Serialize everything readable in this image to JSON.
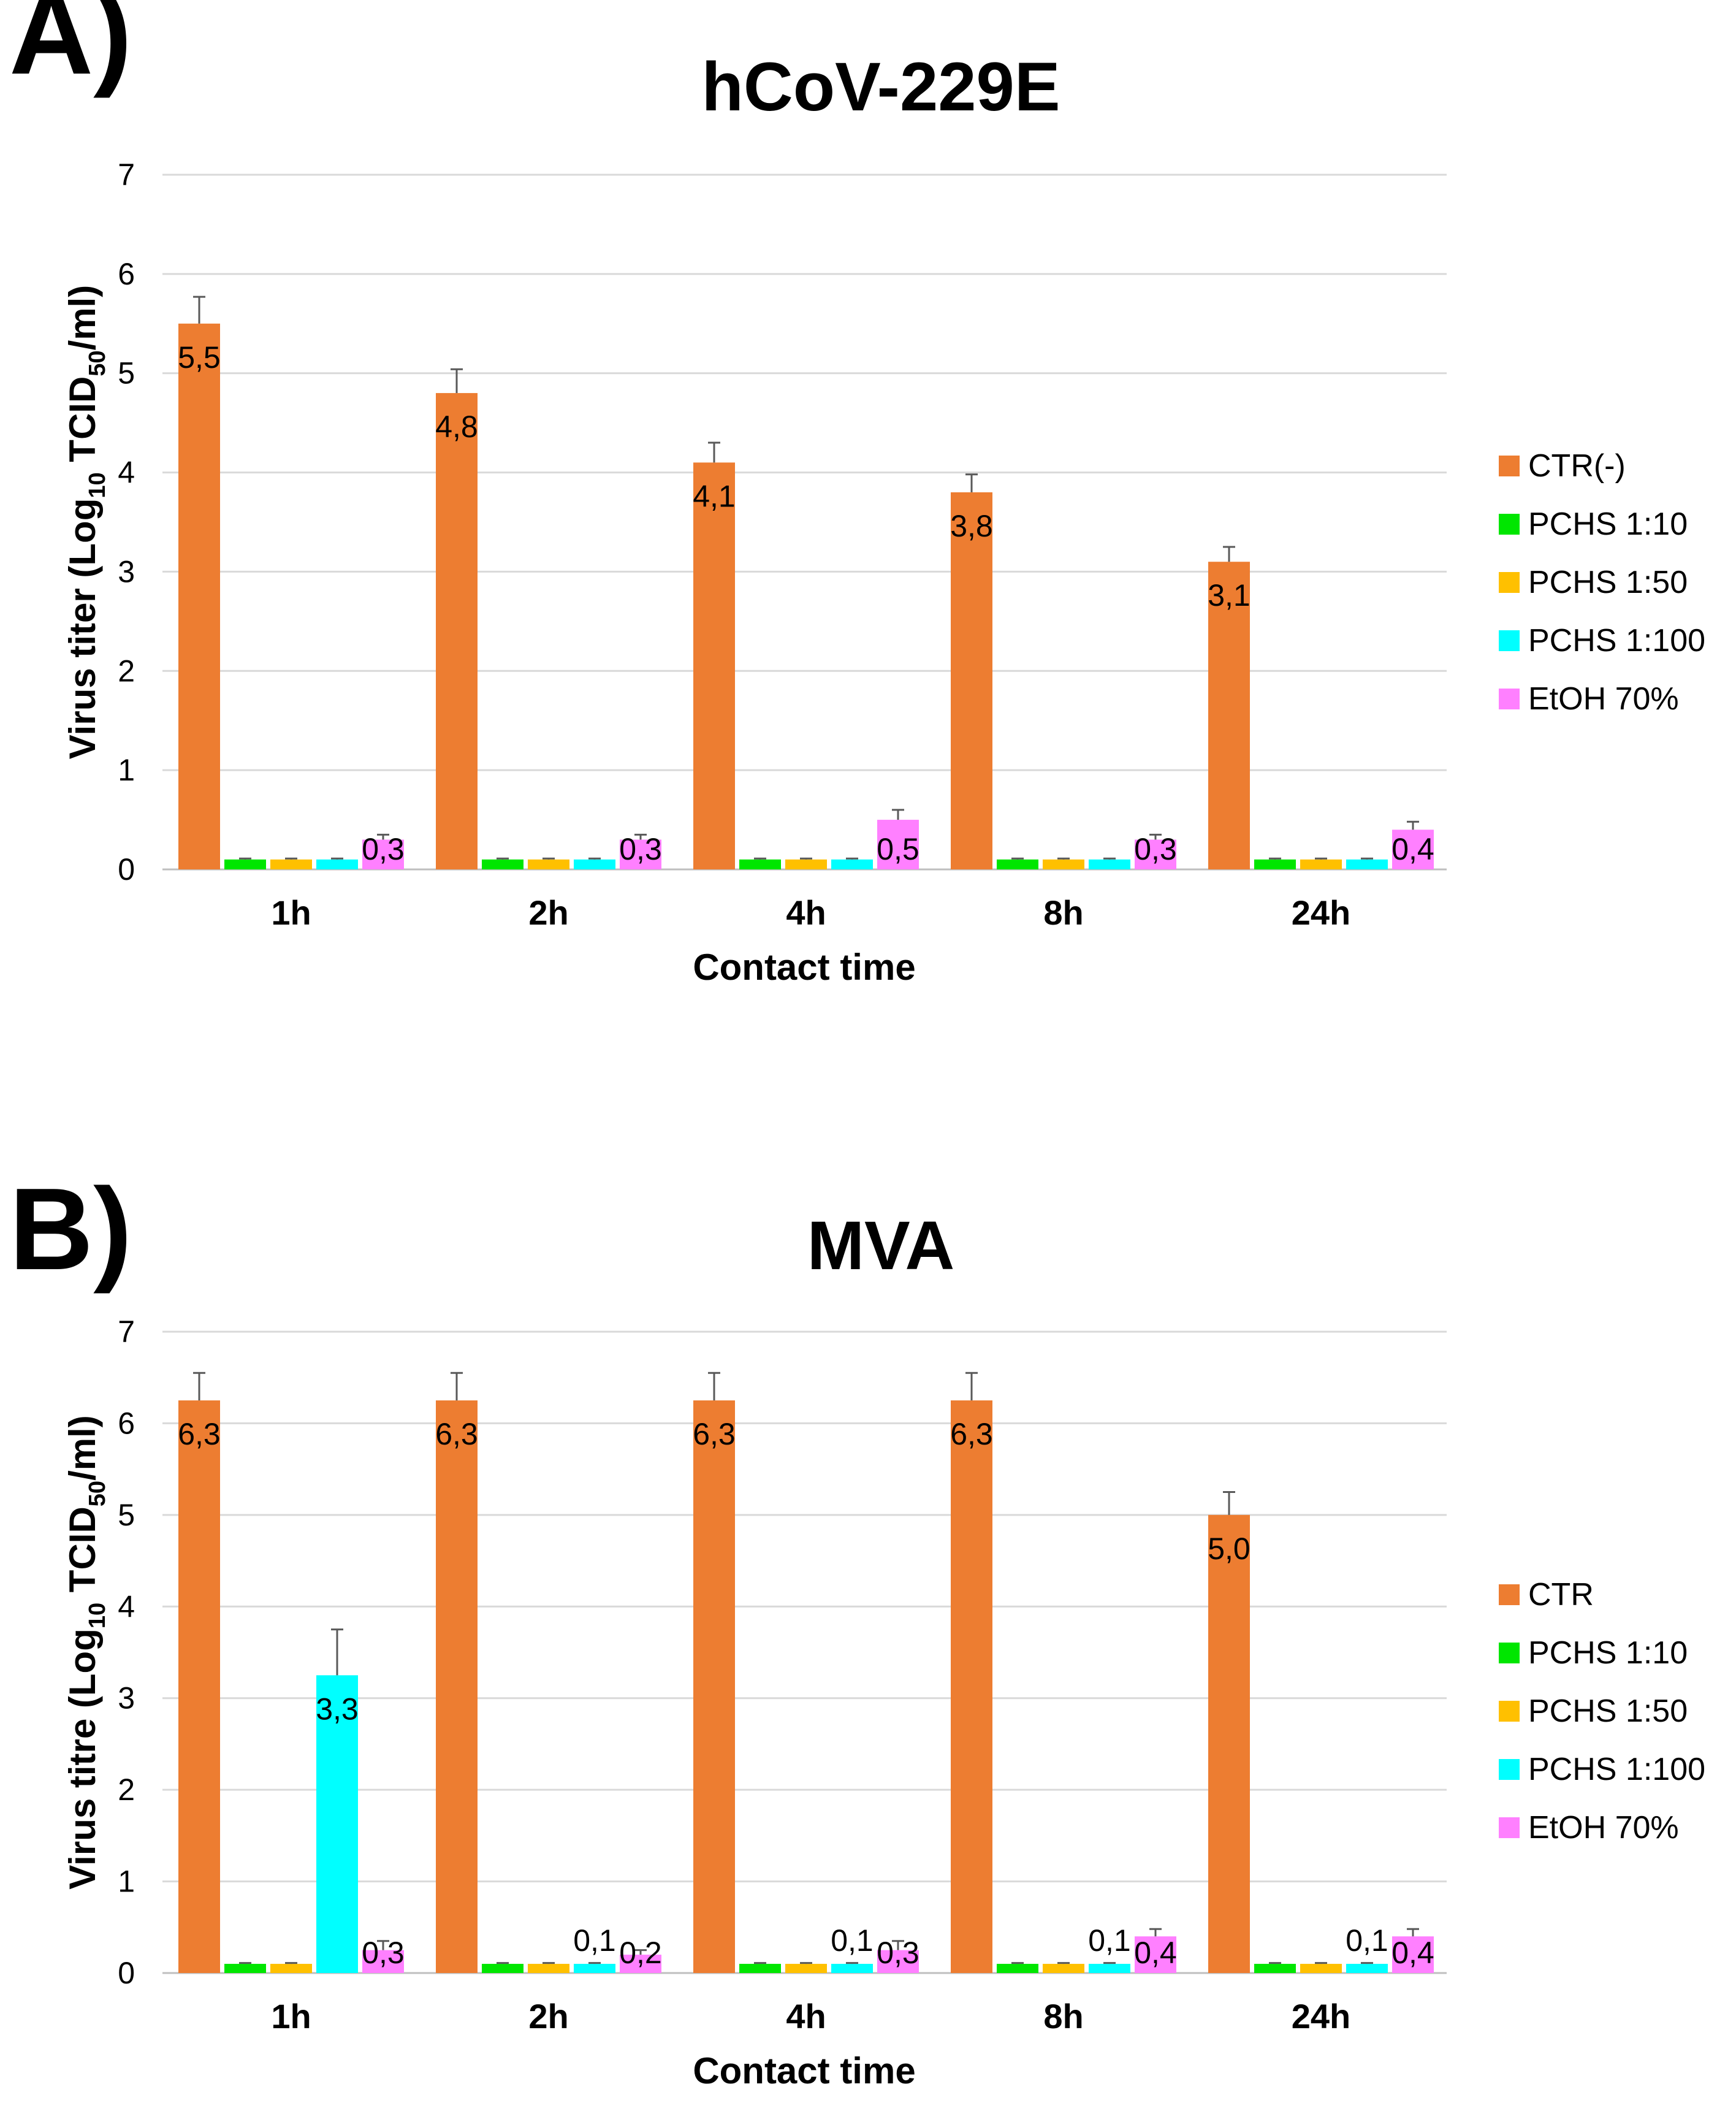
{
  "colors": {
    "orange": "#ED7D31",
    "green": "#00E600",
    "gold": "#FFC000",
    "cyan": "#00FFFF",
    "pink": "#FF80FF",
    "grid": "#D9D9D9",
    "error": "#595959"
  },
  "chart_data": [
    {
      "panel_label": "A)",
      "type": "bar",
      "title": "hCoV-229E",
      "xlabel": "Contact time",
      "ylabel_parts": [
        "Virus titer (Log",
        "10",
        " TCID",
        "50",
        "/ml)"
      ],
      "ylim": [
        0,
        7
      ],
      "yticks": [
        "0",
        "1",
        "2",
        "3",
        "4",
        "5",
        "6",
        "7"
      ],
      "categories": [
        "1h",
        "2h",
        "4h",
        "8h",
        "24h"
      ],
      "legend_position": "right",
      "series": [
        {
          "name": "CTR(-)",
          "color_key": "orange",
          "values": [
            5.5,
            4.8,
            4.1,
            3.8,
            3.1
          ],
          "errors": [
            0.27,
            0.24,
            0.2,
            0.18,
            0.15
          ],
          "labels": [
            "5,5",
            "4,8",
            "4,1",
            "3,8",
            "3,1"
          ]
        },
        {
          "name": "PCHS 1:10",
          "color_key": "green",
          "values": [
            0.1,
            0.1,
            0.1,
            0.1,
            0.1
          ],
          "errors": [
            0.01,
            0.01,
            0.01,
            0.01,
            0.01
          ],
          "labels": [
            "",
            "",
            "",
            "",
            ""
          ]
        },
        {
          "name": "PCHS 1:50",
          "color_key": "gold",
          "values": [
            0.1,
            0.1,
            0.1,
            0.1,
            0.1
          ],
          "errors": [
            0.01,
            0.01,
            0.01,
            0.01,
            0.01
          ],
          "labels": [
            "",
            "",
            "",
            "",
            ""
          ]
        },
        {
          "name": "PCHS 1:100",
          "color_key": "cyan",
          "values": [
            0.1,
            0.1,
            0.1,
            0.1,
            0.1
          ],
          "errors": [
            0.01,
            0.01,
            0.01,
            0.01,
            0.01
          ],
          "labels": [
            "",
            "",
            "",
            "",
            ""
          ]
        },
        {
          "name": "EtOH 70%",
          "color_key": "pink",
          "values": [
            0.3,
            0.3,
            0.5,
            0.3,
            0.4
          ],
          "errors": [
            0.05,
            0.05,
            0.1,
            0.05,
            0.08
          ],
          "labels": [
            "0,3",
            "0,3",
            "0,5",
            "0,3",
            "0,4"
          ]
        }
      ]
    },
    {
      "panel_label": "B)",
      "type": "bar",
      "title": "MVA",
      "xlabel": "Contact time",
      "ylabel_parts": [
        "Virus titre (Log",
        "10",
        " TCID",
        "50",
        "/ml)"
      ],
      "ylim": [
        0,
        7
      ],
      "yticks": [
        "0",
        "1",
        "2",
        "3",
        "4",
        "5",
        "6",
        "7"
      ],
      "categories": [
        "1h",
        "2h",
        "4h",
        "8h",
        "24h"
      ],
      "legend_position": "right",
      "series": [
        {
          "name": "CTR",
          "color_key": "orange",
          "values": [
            6.25,
            6.25,
            6.25,
            6.25,
            5.0
          ],
          "errors": [
            0.3,
            0.3,
            0.3,
            0.3,
            0.25
          ],
          "labels": [
            "6,3",
            "6,3",
            "6,3",
            "6,3",
            "5,0"
          ]
        },
        {
          "name": "PCHS 1:10",
          "color_key": "green",
          "values": [
            0.1,
            0.1,
            0.1,
            0.1,
            0.1
          ],
          "errors": [
            0.01,
            0.01,
            0.01,
            0.01,
            0.01
          ],
          "labels": [
            "",
            "",
            "",
            "",
            ""
          ]
        },
        {
          "name": "PCHS 1:50",
          "color_key": "gold",
          "values": [
            0.1,
            0.1,
            0.1,
            0.1,
            0.1
          ],
          "errors": [
            0.01,
            0.01,
            0.01,
            0.01,
            0.01
          ],
          "labels": [
            "",
            "",
            "",
            "",
            ""
          ]
        },
        {
          "name": "PCHS 1:100",
          "color_key": "cyan",
          "values": [
            3.25,
            0.1,
            0.1,
            0.1,
            0.1
          ],
          "errors": [
            0.5,
            0.01,
            0.01,
            0.01,
            0.01
          ],
          "labels": [
            "3,3",
            "0,1",
            "0,1",
            "0,1",
            "0,1"
          ]
        },
        {
          "name": "EtOH 70%",
          "color_key": "pink",
          "values": [
            0.25,
            0.2,
            0.25,
            0.4,
            0.4
          ],
          "errors": [
            0.1,
            0.05,
            0.1,
            0.08,
            0.08
          ],
          "labels": [
            "0,3",
            "0,2",
            "0,3",
            "0,4",
            "0,4"
          ]
        }
      ]
    }
  ]
}
